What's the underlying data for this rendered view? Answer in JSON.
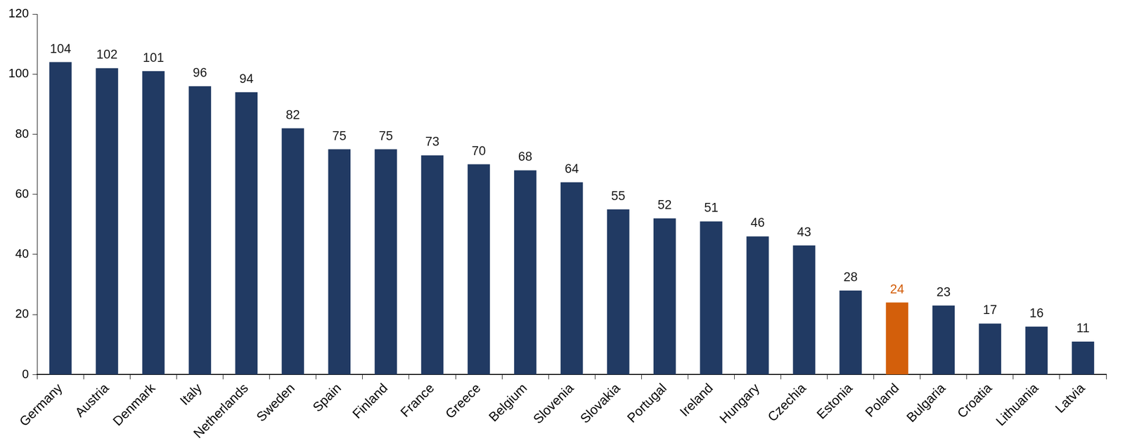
{
  "chart_data": {
    "type": "bar",
    "categories": [
      "Germany",
      "Austria",
      "Denmark",
      "Italy",
      "Netherlands",
      "Sweden",
      "Spain",
      "Finland",
      "France",
      "Greece",
      "Belgium",
      "Slovenia",
      "Slovakia",
      "Portugal",
      "Ireland",
      "Hungary",
      "Czechia",
      "Estonia",
      "Poland",
      "Bulgaria",
      "Croatia",
      "Lithuania",
      "Latvia"
    ],
    "values": [
      104,
      102,
      101,
      96,
      94,
      82,
      75,
      75,
      73,
      70,
      68,
      64,
      55,
      52,
      51,
      46,
      43,
      28,
      24,
      23,
      17,
      16,
      11
    ],
    "colors": [
      "#213a63",
      "#213a63",
      "#213a63",
      "#213a63",
      "#213a63",
      "#213a63",
      "#213a63",
      "#213a63",
      "#213a63",
      "#213a63",
      "#213a63",
      "#213a63",
      "#213a63",
      "#213a63",
      "#213a63",
      "#213a63",
      "#213a63",
      "#213a63",
      "#d35f0b",
      "#213a63",
      "#213a63",
      "#213a63",
      "#213a63"
    ],
    "ylim": [
      0,
      120
    ],
    "yticks": [
      0,
      20,
      40,
      60,
      80,
      100,
      120
    ],
    "grid": false,
    "data_labels": true
  }
}
